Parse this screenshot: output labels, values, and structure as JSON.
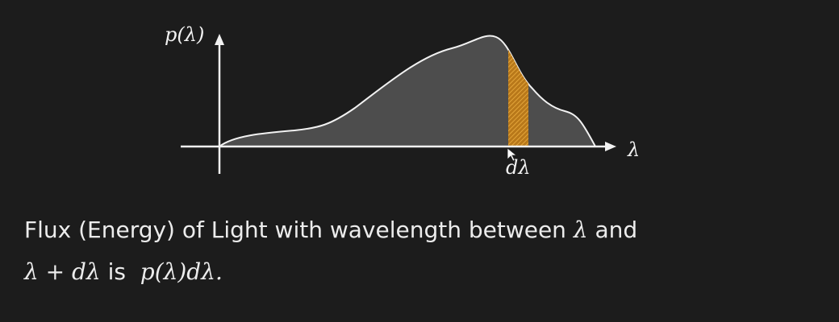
{
  "diagram": {
    "y_axis_label": "p(λ)",
    "x_axis_label": "λ",
    "band_label": "dλ",
    "colors": {
      "background": "#1c1c1c",
      "curve_fill": "#4d4d4d",
      "curve_stroke": "#f2f2f2",
      "band": "#c98a1e",
      "axis": "#f2f2f2"
    }
  },
  "caption": {
    "line1_text": "Flux (Energy) of Light with wavelength between ",
    "line1_math": "λ",
    "line1_end": " and",
    "line2_math_start": "λ + dλ",
    "line2_text": " is  ",
    "line2_math_end": "p(λ)dλ."
  }
}
